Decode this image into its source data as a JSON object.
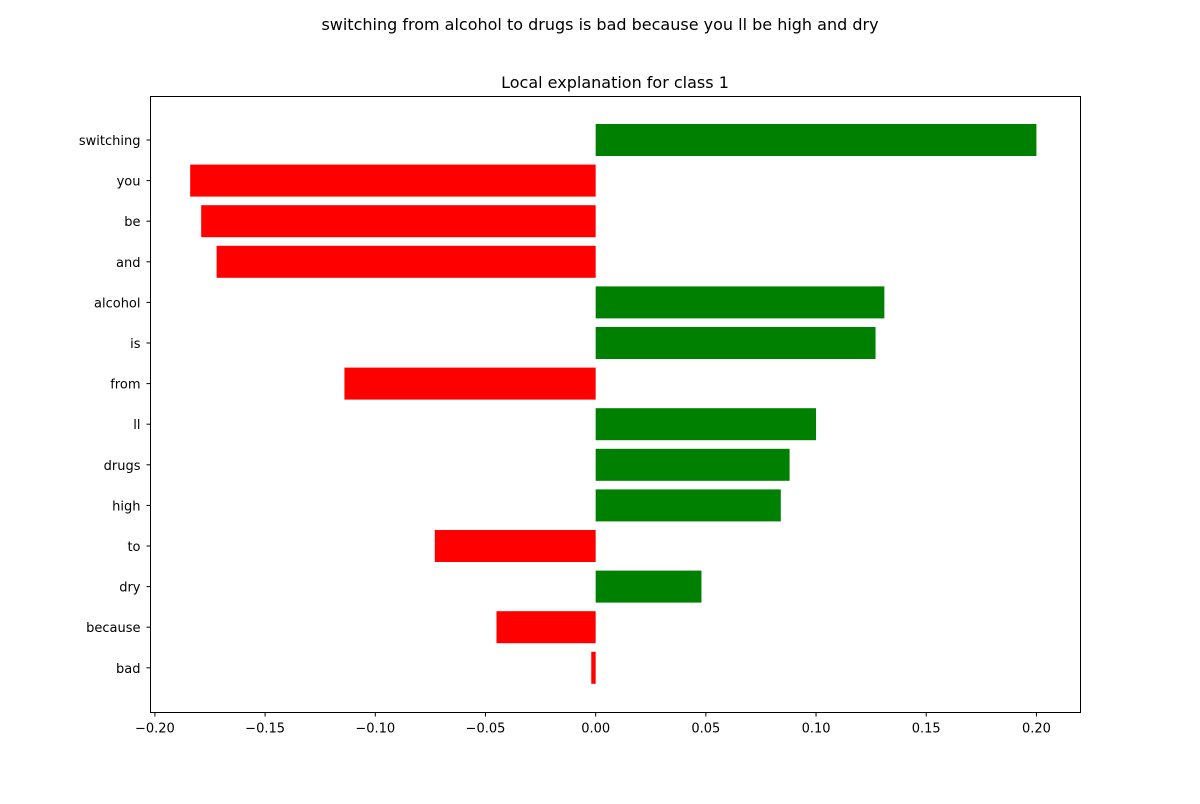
{
  "chart_data": {
    "type": "bar",
    "orientation": "horizontal",
    "suptitle": "switching from alcohol to drugs is bad because you ll be high and dry",
    "title": "Local explanation for class 1",
    "xlabel": "",
    "ylabel": "",
    "xlim": [
      -0.202,
      0.22
    ],
    "xticks": [
      -0.2,
      -0.15,
      -0.1,
      -0.05,
      0.0,
      0.05,
      0.1,
      0.15,
      0.2
    ],
    "xtick_labels": [
      "−0.20",
      "−0.15",
      "−0.10",
      "−0.05",
      "0.00",
      "0.05",
      "0.10",
      "0.15",
      "0.20"
    ],
    "categories": [
      "switching",
      "you",
      "be",
      "and",
      "alcohol",
      "is",
      "from",
      "ll",
      "drugs",
      "high",
      "to",
      "dry",
      "because",
      "bad"
    ],
    "values": [
      0.2,
      -0.184,
      -0.179,
      -0.172,
      0.131,
      0.127,
      -0.114,
      0.1,
      0.088,
      0.084,
      -0.073,
      0.048,
      -0.045,
      -0.002
    ],
    "positive_color": "#008000",
    "negative_color": "#ff0000",
    "grid": false,
    "legend": "none"
  }
}
